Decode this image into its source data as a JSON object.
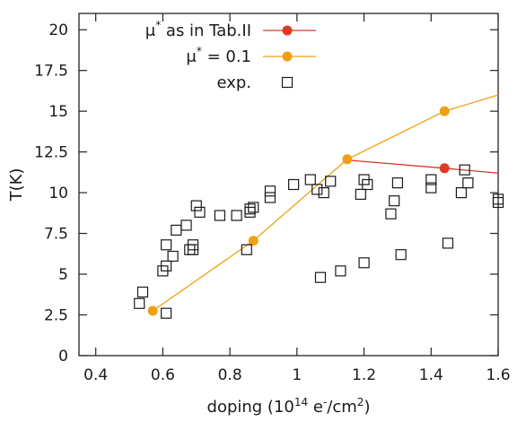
{
  "chart_data": {
    "type": "scatter",
    "xlabel": "doping (10^14 e^-/cm^2)",
    "ylabel": "T(K)",
    "xlim": [
      0.35,
      1.6
    ],
    "ylim": [
      0,
      21
    ],
    "xticks": [
      "0.4",
      "0.6",
      "0.8",
      "1",
      "1.2",
      "1.4",
      "1.6"
    ],
    "xtick_values": [
      0.4,
      0.6,
      0.8,
      1.0,
      1.2,
      1.4,
      1.6
    ],
    "yticks": [
      "0",
      "2.5",
      "5",
      "7.5",
      "10",
      "12.5",
      "15",
      "17.5",
      "20"
    ],
    "ytick_values": [
      0,
      2.5,
      5,
      7.5,
      10,
      12.5,
      15,
      17.5,
      20
    ],
    "legend_position": "top-left",
    "grid": false,
    "series": [
      {
        "name": "μ* as in Tab.II",
        "legend_main": "μ",
        "legend_sup": "*",
        "legend_rest": " as in Tab.II",
        "kind": "line-marker",
        "color": "#e03a26",
        "line_color": "#d63a2a",
        "x": [
          1.15,
          1.44,
          1.6
        ],
        "y": [
          12.0,
          11.5,
          11.2
        ],
        "markers": [
          false,
          true,
          false
        ]
      },
      {
        "name": "μ* = 0.1",
        "legend_main": "μ",
        "legend_sup": "*",
        "legend_rest": " = 0.1",
        "kind": "line-marker",
        "color": "#f0a010",
        "line_color": "#f0a010",
        "x": [
          0.57,
          0.87,
          1.15,
          1.44,
          1.6
        ],
        "y": [
          2.75,
          7.05,
          12.05,
          15.0,
          16.0
        ],
        "markers": [
          true,
          true,
          true,
          true,
          false
        ]
      },
      {
        "name": "exp.",
        "kind": "scatter",
        "marker": "open-square",
        "color": "#1a1a1a",
        "x": [
          0.53,
          0.54,
          0.6,
          0.61,
          0.61,
          0.61,
          0.63,
          0.64,
          0.67,
          0.68,
          0.69,
          0.69,
          0.7,
          0.71,
          0.77,
          0.82,
          0.85,
          0.86,
          0.86,
          0.87,
          0.92,
          0.92,
          0.99,
          1.04,
          1.06,
          1.07,
          1.08,
          1.1,
          1.13,
          1.19,
          1.2,
          1.2,
          1.21,
          1.28,
          1.29,
          1.3,
          1.31,
          1.4,
          1.4,
          1.45,
          1.49,
          1.5,
          1.51,
          1.6,
          1.6
        ],
        "y": [
          3.2,
          3.9,
          5.2,
          5.5,
          2.6,
          6.8,
          6.1,
          7.7,
          8.0,
          6.5,
          6.8,
          6.5,
          9.2,
          8.8,
          8.6,
          8.6,
          6.5,
          8.8,
          9.0,
          9.1,
          9.7,
          10.1,
          10.5,
          10.8,
          10.2,
          4.8,
          10.0,
          10.7,
          5.2,
          9.9,
          10.8,
          5.7,
          10.5,
          8.7,
          9.5,
          10.6,
          6.2,
          10.8,
          10.3,
          6.9,
          10.0,
          11.4,
          10.6,
          9.6,
          9.4
        ]
      }
    ]
  }
}
